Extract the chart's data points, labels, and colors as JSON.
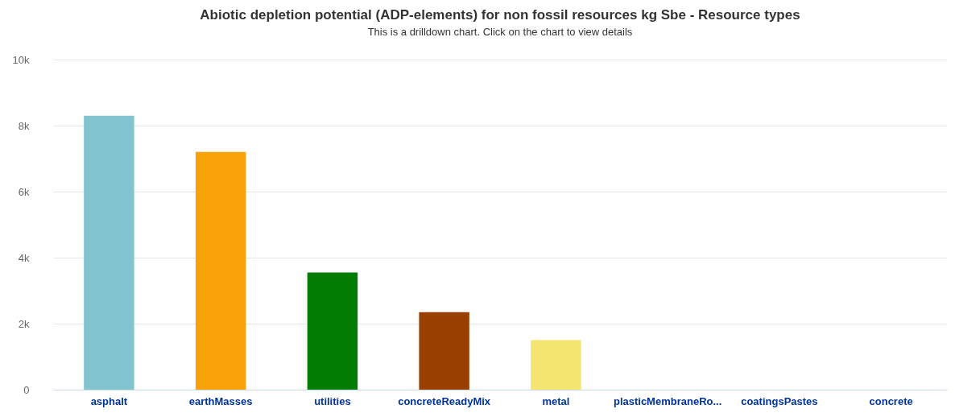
{
  "chart_data": {
    "type": "bar",
    "title": "Abiotic depletion potential (ADP-elements) for non fossil resources kg Sbe - Resource types",
    "subtitle": "This is a drilldown chart. Click on the chart to view details",
    "categories": [
      "asphalt",
      "earthMasses",
      "utilities",
      "concreteReadyMix",
      "metal",
      "plasticMembraneRo...",
      "coatingsPastes",
      "concrete"
    ],
    "values": [
      8300,
      7200,
      3550,
      2350,
      1500,
      0,
      0,
      0
    ],
    "colors": [
      "#82c4cd",
      "#f9a109",
      "#037d03",
      "#984000",
      "#f3e570",
      "#7cb5ec",
      "#434348",
      "#90ed7d"
    ],
    "ylim": [
      0,
      10000
    ],
    "yticks": [
      {
        "value": 0,
        "label": "0"
      },
      {
        "value": 2000,
        "label": "2k"
      },
      {
        "value": 4000,
        "label": "4k"
      },
      {
        "value": 6000,
        "label": "6k"
      },
      {
        "value": 8000,
        "label": "8k"
      },
      {
        "value": 10000,
        "label": "10k"
      }
    ],
    "grid": "y",
    "legend": false
  }
}
